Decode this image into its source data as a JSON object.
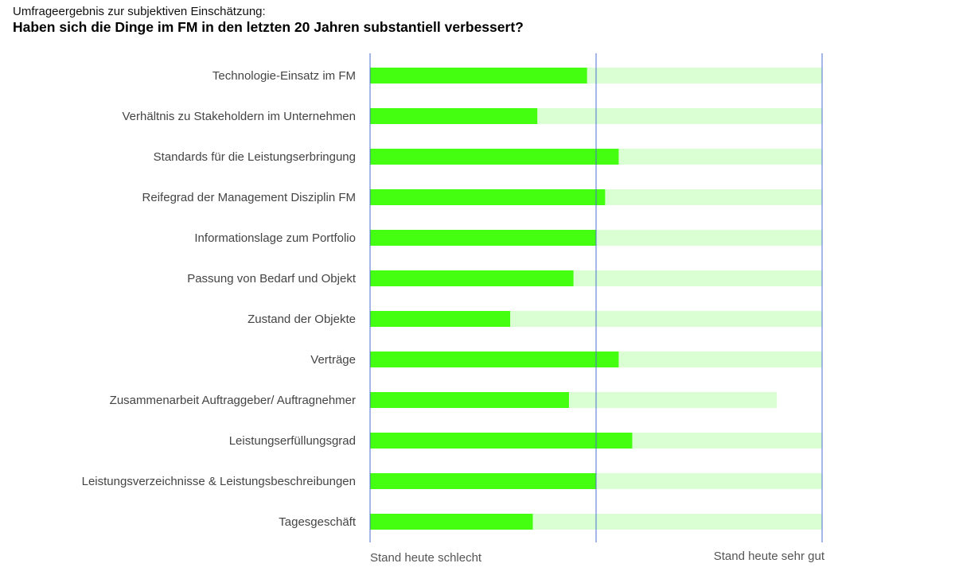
{
  "header": {
    "subtitle": "Umfrageergebnis zur subjektiven Einschätzung:",
    "title": "Haben sich die Dinge im FM in den letzten 20 Jahren substantiell verbessert?"
  },
  "colors": {
    "bar": "#44ff0f",
    "range": "#d9ffd2",
    "reference_line": "#4a6fd1",
    "label": "#444444"
  },
  "chart_data": {
    "type": "bar",
    "orientation": "horizontal",
    "x_scale": [
      0,
      100
    ],
    "xlim": [
      0,
      100
    ],
    "grid": false,
    "reference_lines": [
      0,
      50,
      100
    ],
    "axis_labels": {
      "left": "Stand heute schlecht",
      "right": "Stand heute sehr gut"
    },
    "categories": [
      "Technologie-Einsatz im FM",
      "Verhältnis zu Stakeholdern im Unternehmen",
      "Standards für die Leistungserbringung",
      "Reifegrad der Management Disziplin FM",
      "Informationslage zum Portfolio",
      "Passung von Bedarf und Objekt",
      "Zustand der Objekte",
      "Verträge",
      "Zusammenarbeit Auftraggeber/ Auftragnehmer",
      "Leistungserfüllungsgrad",
      "Leistungsverzeichnisse & Leistungsbeschreibungen",
      "Tagesgeschäft"
    ],
    "series": [
      {
        "values": [
          48,
          37,
          55,
          52,
          50,
          45,
          31,
          55,
          44,
          58,
          50,
          36
        ]
      },
      {
        "values": [
          100,
          100,
          100,
          100,
          100,
          100,
          100,
          100,
          90,
          100,
          100,
          100
        ]
      }
    ]
  }
}
